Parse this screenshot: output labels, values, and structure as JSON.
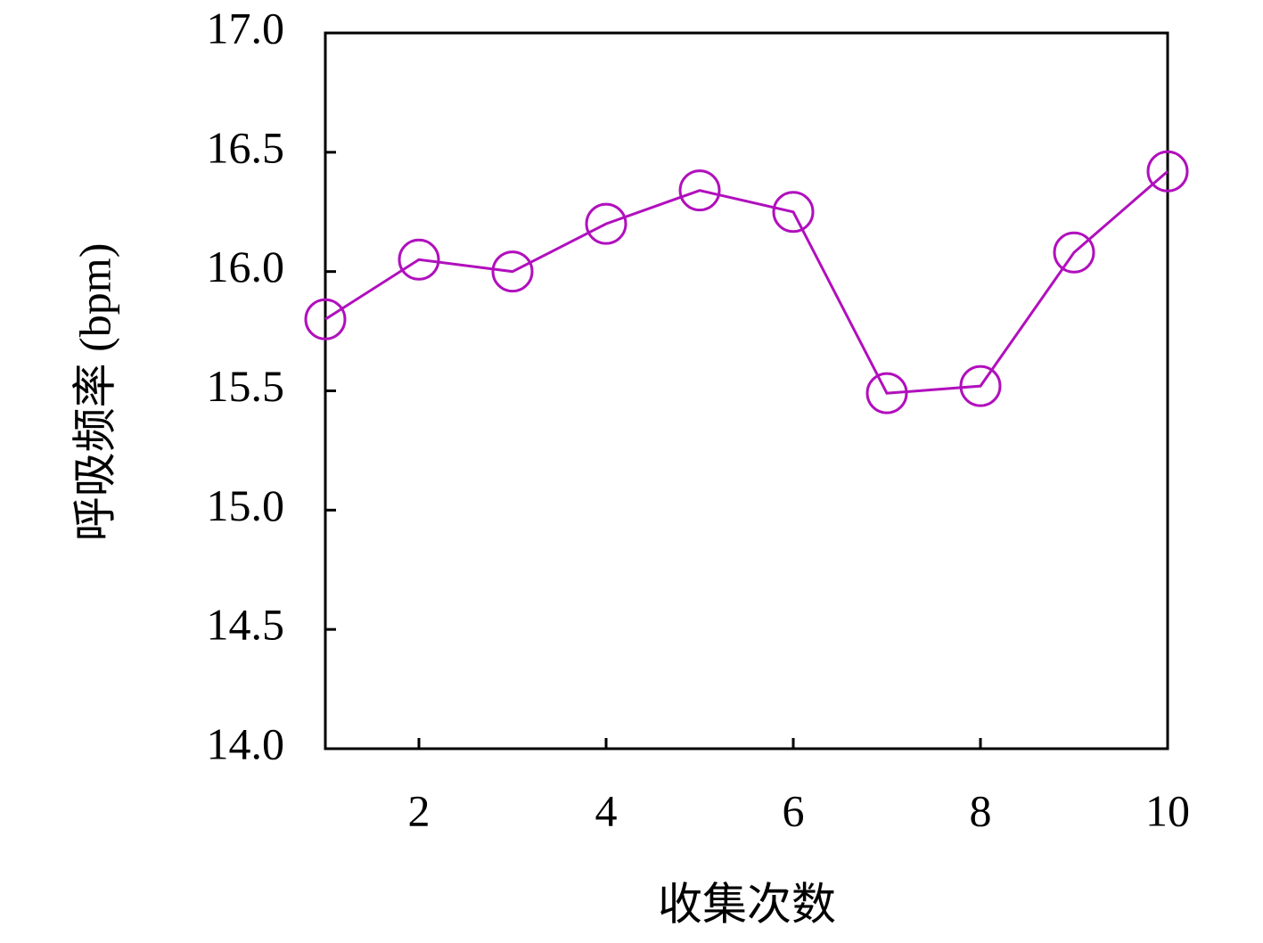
{
  "chart_data": {
    "type": "line",
    "x_label": "收集次数",
    "y_label": "呼吸频率 (bpm)",
    "x": [
      1,
      2,
      3,
      4,
      5,
      6,
      7,
      8,
      9,
      10
    ],
    "series": [
      {
        "color": "#b10fbd",
        "values": [
          15.8,
          16.05,
          16.0,
          16.2,
          16.34,
          16.25,
          15.49,
          15.52,
          16.08,
          16.42
        ]
      }
    ],
    "xlim": [
      1,
      10
    ],
    "xticks": [
      2,
      4,
      6,
      8,
      10
    ],
    "ylim": [
      14,
      17
    ],
    "yticks": [
      {
        "value": 14,
        "label": "14.0"
      },
      14.5,
      {
        "value": 15,
        "label": "15.0"
      },
      15.5,
      {
        "value": 16,
        "label": "16.0"
      },
      16.5,
      {
        "value": 17,
        "label": "17.0"
      }
    ],
    "grid": false,
    "marker": "circle"
  }
}
